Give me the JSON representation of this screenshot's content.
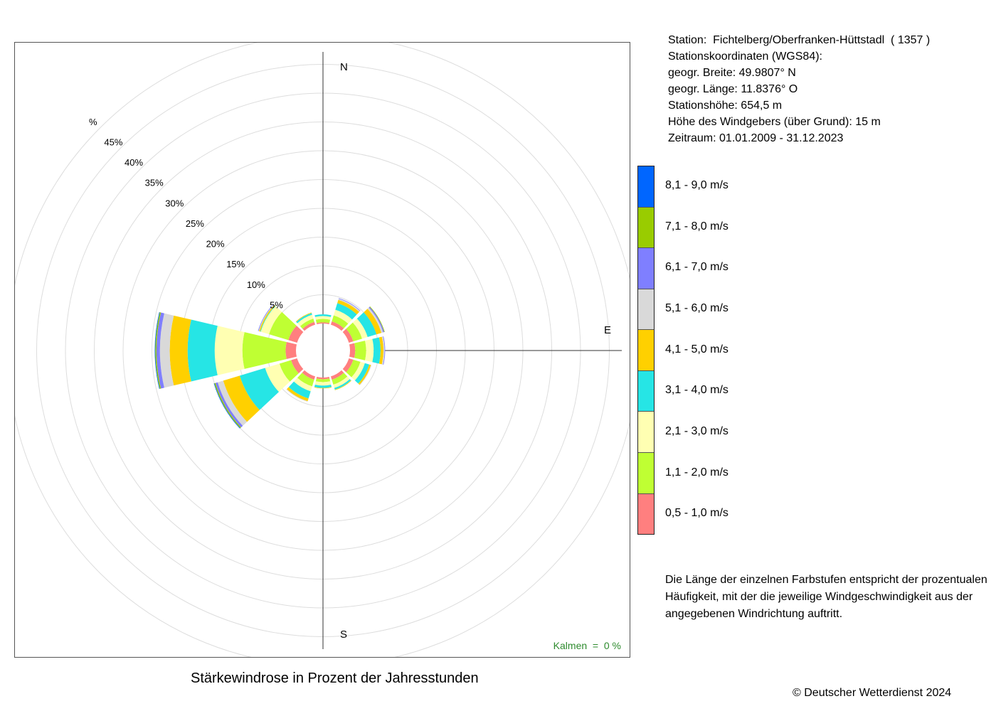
{
  "info": {
    "station": "Station:  Fichtelberg/Oberfranken-Hüttstadl  ( 1357 )",
    "coords_title": "Stationskoordinaten (WGS84):",
    "lat": "geogr. Breite: 49.9807° N",
    "lon": "geogr. Länge: 11.8376° O",
    "elevation": "Stationshöhe: 654,5 m",
    "sensor_height": "Höhe des Windgebers (über Grund): 15 m",
    "period": "Zeitraum: 01.01.2009 - 31.12.2023"
  },
  "compass": {
    "n": "N",
    "e": "E",
    "s": "S"
  },
  "calm": "Kalmen  =  0 %",
  "note": "Die Länge der einzelnen Farbstufen entspricht der prozentualen Häufigkeit, mit der die jeweilige Windgeschwindigkeit aus der angegebenen Windrichtung auftritt.",
  "caption": "Stärkewindrose in Prozent der Jahresstunden",
  "copyright": "© Deutscher Wetterdienst  2024",
  "legend": [
    {
      "label": "0,5 - 1,0 m/s",
      "color": "#ff7f7f"
    },
    {
      "label": "1,1 - 2,0 m/s",
      "color": "#bfff33"
    },
    {
      "label": "2,1 - 3,0 m/s",
      "color": "#ffffb2"
    },
    {
      "label": "3,1 - 4,0 m/s",
      "color": "#26e5e5"
    },
    {
      "label": "4,1 - 5,0 m/s",
      "color": "#ffd000"
    },
    {
      "label": "5,1 - 6,0 m/s",
      "color": "#d9d9d9"
    },
    {
      "label": "6,1 - 7,0 m/s",
      "color": "#7f7fff"
    },
    {
      "label": "7,1 - 8,0 m/s",
      "color": "#99cc00"
    },
    {
      "label": "8,1 - 9,0 m/s",
      "color": "#0066ff"
    }
  ],
  "chart_data": {
    "type": "wind-rose",
    "title": "Stärkewindrose in Prozent der Jahresstunden",
    "radial_unit": "%",
    "rings": [
      5,
      10,
      15,
      20,
      25,
      30,
      35,
      40,
      45,
      50
    ],
    "ring_labels": [
      "5%",
      "10%",
      "15%",
      "20%",
      "25%",
      "30%",
      "35%",
      "40%",
      "45%",
      "%"
    ],
    "directions_deg": [
      0,
      30,
      60,
      90,
      120,
      150,
      180,
      210,
      240,
      270,
      300,
      330
    ],
    "series": [
      {
        "name": "0,5 - 1,0 m/s",
        "values": [
          0.2,
          0.6,
          0.8,
          0.9,
          0.8,
          0.6,
          0.3,
          0.6,
          1.1,
          1.8,
          1.6,
          0.5
        ]
      },
      {
        "name": "1,1 - 2,0 m/s",
        "values": [
          0.6,
          1.1,
          1.6,
          1.9,
          1.3,
          0.9,
          0.5,
          1.2,
          2.1,
          7.5,
          3.5,
          0.6
        ]
      },
      {
        "name": "2,1 - 3,0 m/s",
        "values": [
          0.5,
          1.0,
          1.0,
          1.3,
          0.8,
          0.6,
          0.6,
          0.9,
          2.6,
          4.8,
          1.5,
          0.7
        ]
      },
      {
        "name": "3,1 - 4,0 m/s",
        "values": [
          0.3,
          1.2,
          1.6,
          1.2,
          0.8,
          0.3,
          0.4,
          1.3,
          4.6,
          4.7,
          0.1,
          0.3
        ]
      },
      {
        "name": "4,1 - 5,0 m/s",
        "values": [
          0.0,
          0.6,
          0.9,
          0.5,
          0.3,
          0.1,
          0.1,
          0.5,
          3.0,
          3.1,
          0.2,
          0.1
        ]
      },
      {
        "name": "5,1 - 6,0 m/s",
        "values": [
          0.0,
          0.2,
          0.3,
          0.2,
          0.1,
          0.0,
          0.0,
          0.1,
          1.0,
          1.7,
          0.1,
          0.0
        ]
      },
      {
        "name": "6,1 - 7,0 m/s",
        "values": [
          0.0,
          0.1,
          0.2,
          0.1,
          0.0,
          0.0,
          0.0,
          0.0,
          0.4,
          0.6,
          0.1,
          0.0
        ]
      },
      {
        "name": "7,1 - 8,0 m/s",
        "values": [
          0.0,
          0.0,
          0.1,
          0.0,
          0.0,
          0.0,
          0.0,
          0.0,
          0.2,
          0.2,
          0.0,
          0.0
        ]
      },
      {
        "name": "8,1 - 9,0 m/s",
        "values": [
          0.0,
          0.0,
          0.0,
          0.0,
          0.0,
          0.0,
          0.0,
          0.0,
          0.1,
          0.1,
          0.0,
          0.0
        ]
      }
    ]
  }
}
